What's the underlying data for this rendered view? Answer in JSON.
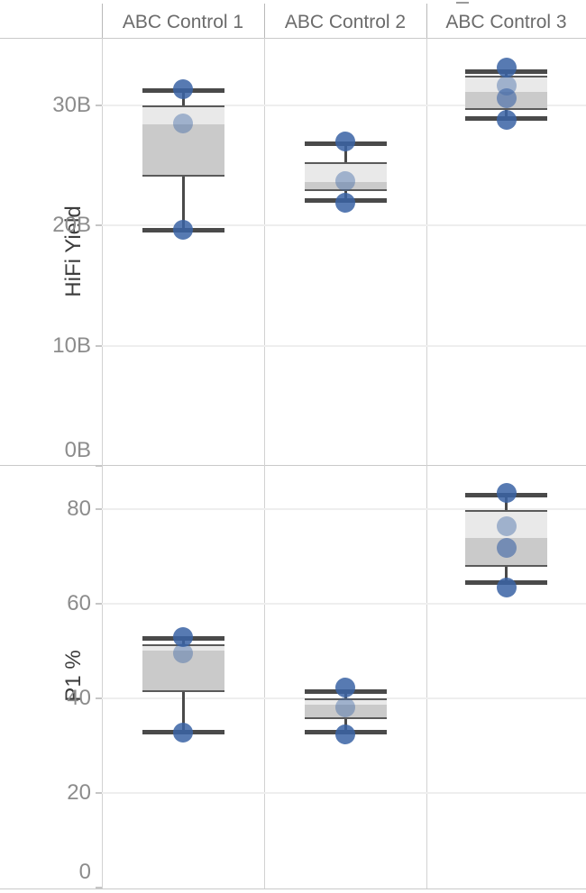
{
  "header": {
    "columns": [
      "ABC Control 1",
      "ABC Control 2",
      "ABC Control 3"
    ]
  },
  "chart_data": [
    {
      "type": "boxplot",
      "ylabel": "HiFi Yield",
      "unit": "B",
      "categories": [
        "ABC Control 1",
        "ABC Control 2",
        "ABC Control 3"
      ],
      "ylim": [
        0,
        35.6
      ],
      "grid": true,
      "yticks": [
        {
          "value": 0,
          "label": "0B"
        },
        {
          "value": 10,
          "label": "10B"
        },
        {
          "value": 20,
          "label": "20B"
        },
        {
          "value": 30,
          "label": "30B"
        }
      ],
      "boxes": [
        {
          "category": "ABC Control 1",
          "whisker_low": 19.6,
          "q1": 24.1,
          "median": 28.4,
          "q3": 29.9,
          "whisker_high": 31.2,
          "points": [
            {
              "value": 31.3,
              "shade": "dark"
            },
            {
              "value": 28.5,
              "shade": "light"
            },
            {
              "value": 19.6,
              "shade": "dark"
            }
          ]
        },
        {
          "category": "ABC Control 2",
          "whisker_low": 22.1,
          "q1": 22.9,
          "median": 23.6,
          "q3": 25.2,
          "whisker_high": 26.8,
          "points": [
            {
              "value": 27.0,
              "shade": "dark"
            },
            {
              "value": 23.7,
              "shade": "light"
            },
            {
              "value": 21.9,
              "shade": "dark"
            }
          ]
        },
        {
          "category": "ABC Control 3",
          "whisker_low": 28.9,
          "q1": 29.7,
          "median": 31.1,
          "q3": 32.4,
          "whisker_high": 32.8,
          "points": [
            {
              "value": 33.1,
              "shade": "dark"
            },
            {
              "value": 31.6,
              "shade": "light"
            },
            {
              "value": 30.6,
              "shade": "medium"
            },
            {
              "value": 28.8,
              "shade": "dark"
            }
          ]
        }
      ]
    },
    {
      "type": "boxplot",
      "ylabel": "P1 %",
      "unit": "%",
      "categories": [
        "ABC Control 1",
        "ABC Control 2",
        "ABC Control 3"
      ],
      "ylim": [
        0,
        89.3
      ],
      "grid": true,
      "yticks": [
        {
          "value": 0,
          "label": "0"
        },
        {
          "value": 20,
          "label": "20"
        },
        {
          "value": 40,
          "label": "40"
        },
        {
          "value": 60,
          "label": "60"
        },
        {
          "value": 80,
          "label": "80"
        }
      ],
      "boxes": [
        {
          "category": "ABC Control 1",
          "whisker_low": 32.8,
          "q1": 41.5,
          "median": 50.0,
          "q3": 51.2,
          "whisker_high": 52.6,
          "points": [
            {
              "value": 53.0,
              "shade": "dark"
            },
            {
              "value": 49.5,
              "shade": "light"
            },
            {
              "value": 32.8,
              "shade": "dark"
            }
          ]
        },
        {
          "category": "ABC Control 2",
          "whisker_low": 32.8,
          "q1": 35.8,
          "median": 38.7,
          "q3": 39.8,
          "whisker_high": 41.5,
          "points": [
            {
              "value": 42.3,
              "shade": "dark"
            },
            {
              "value": 38.1,
              "shade": "light"
            },
            {
              "value": 32.4,
              "shade": "dark"
            }
          ]
        },
        {
          "category": "ABC Control 3",
          "whisker_low": 64.4,
          "q1": 68.0,
          "median": 73.9,
          "q3": 79.6,
          "whisker_high": 82.9,
          "points": [
            {
              "value": 83.4,
              "shade": "dark"
            },
            {
              "value": 76.4,
              "shade": "light"
            },
            {
              "value": 71.8,
              "shade": "medium"
            },
            {
              "value": 63.4,
              "shade": "dark"
            }
          ]
        }
      ]
    }
  ],
  "colors": {
    "dot_base": "#3a63a5",
    "dot_opacity": {
      "dark": 0.85,
      "medium": 0.6,
      "light": 0.42
    },
    "box_light": "#e9e9e9",
    "box_dark": "#cacaca",
    "box_border": "#5a5a5a",
    "whisker": "#4a4a4a",
    "grid": "#eeeeee",
    "tick": "#c6c6c6",
    "divider": "#c9c9c9",
    "tick_label": "#8c8c8c",
    "header_text": "#6b6b6b",
    "axis_title": "#3d3d3d"
  }
}
